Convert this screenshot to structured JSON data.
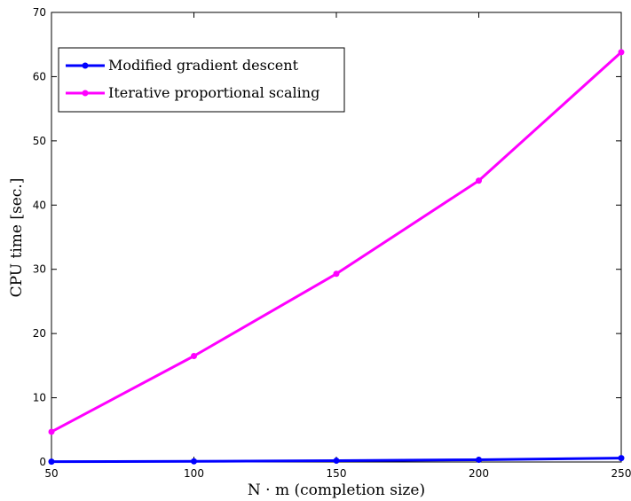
{
  "chart_data": {
    "type": "line",
    "x": [
      50,
      100,
      150,
      200,
      250
    ],
    "series": [
      {
        "name": "Modified gradient descent",
        "values": [
          0.05,
          0.1,
          0.2,
          0.35,
          0.6
        ],
        "color": "#0000ff"
      },
      {
        "name": "Iterative proportional scaling",
        "values": [
          4.7,
          16.5,
          29.3,
          43.8,
          63.8
        ],
        "color": "#ff00ff"
      }
    ],
    "xlabel": "N · m (completion size)",
    "ylabel": "CPU time [sec.]",
    "xlim": [
      50,
      250
    ],
    "ylim": [
      0,
      70
    ],
    "xticks": [
      50,
      100,
      150,
      200,
      250
    ],
    "yticks": [
      0,
      10,
      20,
      30,
      40,
      50,
      60,
      70
    ],
    "grid": false,
    "legend_position": "top-left"
  }
}
